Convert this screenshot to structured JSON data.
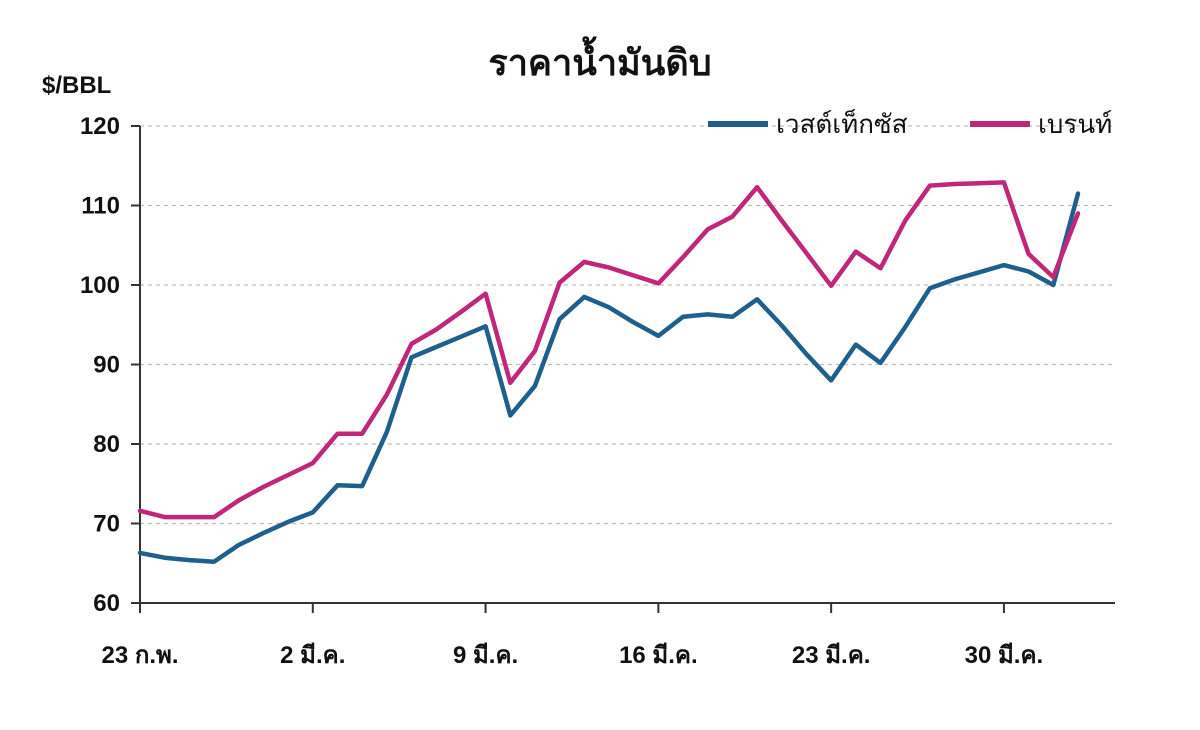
{
  "chart_data": {
    "type": "line",
    "title": "ราคาน้ำมันดิบ",
    "ylabel": "$/BBL",
    "xlabel": "",
    "ylim": [
      60,
      120
    ],
    "yticks": [
      60,
      70,
      80,
      90,
      100,
      110,
      120
    ],
    "xlim": [
      0,
      39.5
    ],
    "xticks": [
      {
        "x": 0,
        "label": "23 ก.พ."
      },
      {
        "x": 7,
        "label": "2 มี.ค."
      },
      {
        "x": 14,
        "label": "9 มี.ค."
      },
      {
        "x": 21,
        "label": "16 มี.ค."
      },
      {
        "x": 28,
        "label": "23 มี.ค."
      },
      {
        "x": 35,
        "label": "30 มี.ค."
      }
    ],
    "grid": "horizontal dashed",
    "legend_position": "top-right",
    "x": [
      0,
      1,
      2,
      3,
      4,
      5,
      6,
      7,
      8,
      9,
      10,
      11,
      12,
      13,
      14,
      15,
      16,
      17,
      18,
      19,
      20,
      21,
      22,
      23,
      24,
      25,
      26,
      27,
      28,
      29,
      30,
      31,
      32,
      33,
      34,
      35,
      36,
      37,
      38
    ],
    "series": [
      {
        "name": "เวสต์เท็กซัส",
        "color": "#1f5f8b",
        "values": [
          66.3,
          65.7,
          65.4,
          65.2,
          67.3,
          68.8,
          70.2,
          71.4,
          74.8,
          74.7,
          81.5,
          90.9,
          92.2,
          93.5,
          94.8,
          83.6,
          87.3,
          95.7,
          98.5,
          97.2,
          95.3,
          93.6,
          96.0,
          96.3,
          96.0,
          98.2,
          94.9,
          91.3,
          88.0,
          92.5,
          90.2,
          94.7,
          99.6,
          100.7,
          101.6,
          102.5,
          101.7,
          100.0,
          111.5
        ]
      },
      {
        "name": "เบรนท์",
        "color": "#c0267a",
        "values": [
          71.6,
          70.8,
          70.8,
          70.8,
          72.9,
          74.6,
          76.1,
          77.6,
          81.3,
          81.3,
          86.2,
          92.6,
          94.4,
          96.6,
          98.9,
          87.7,
          91.7,
          100.3,
          102.9,
          102.2,
          101.2,
          100.2,
          103.5,
          107.0,
          108.6,
          112.3,
          108.1,
          104.0,
          99.9,
          104.2,
          102.1,
          108.1,
          112.5,
          112.7,
          112.8,
          112.9,
          103.9,
          101.0,
          109.0
        ]
      }
    ]
  }
}
